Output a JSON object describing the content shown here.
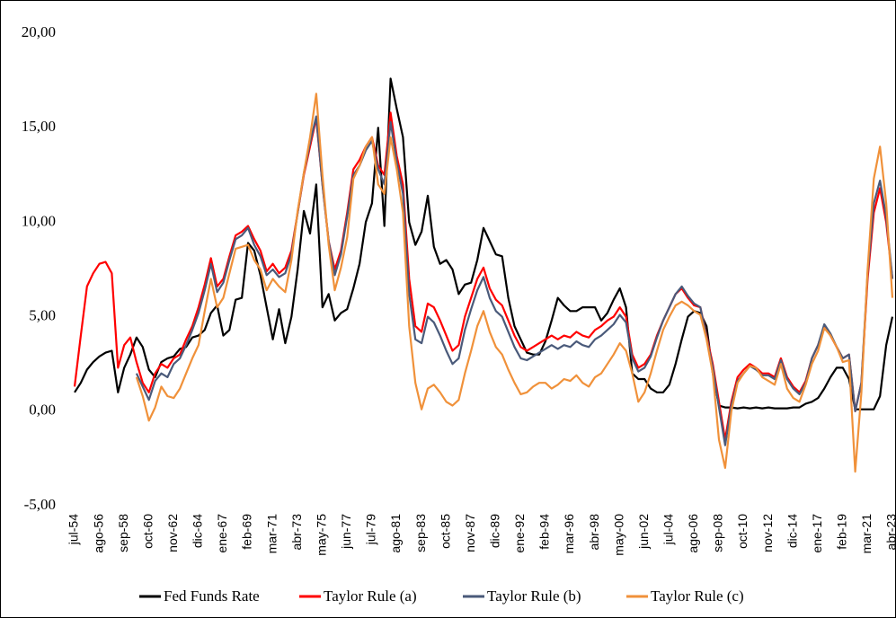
{
  "chart_data": {
    "type": "line",
    "categories": [
      "jul-54",
      null,
      null,
      null,
      "ago-56",
      null,
      null,
      null,
      "sep-58",
      null,
      null,
      null,
      "oct-60",
      null,
      null,
      null,
      "nov-62",
      null,
      null,
      null,
      "dic-64",
      null,
      null,
      null,
      "ene-67",
      null,
      null,
      null,
      "feb-69",
      null,
      null,
      null,
      "mar-71",
      null,
      null,
      null,
      "abr-73",
      null,
      null,
      null,
      "may-75",
      null,
      null,
      null,
      "jun-77",
      null,
      null,
      null,
      "jul-79",
      null,
      null,
      null,
      "ago-81",
      null,
      null,
      null,
      "sep-83",
      null,
      null,
      null,
      "oct-85",
      null,
      null,
      null,
      "nov-87",
      null,
      null,
      null,
      "dic-89",
      null,
      null,
      null,
      "ene-92",
      null,
      null,
      null,
      "feb-94",
      null,
      null,
      null,
      "mar-96",
      null,
      null,
      null,
      "abr-98",
      null,
      null,
      null,
      "may-00",
      null,
      null,
      null,
      "jun-02",
      null,
      null,
      null,
      "jul-04",
      null,
      null,
      null,
      "ago-06",
      null,
      null,
      null,
      "sep-08",
      null,
      null,
      null,
      "oct-10",
      null,
      null,
      null,
      "nov-12",
      null,
      null,
      null,
      "dic-14",
      null,
      null,
      null,
      "ene-17",
      null,
      null,
      null,
      "feb-19",
      null,
      null,
      null,
      "mar-21",
      null,
      null,
      null,
      "abr-23"
    ],
    "series": [
      {
        "name": "Fed Funds Rate",
        "color": "#000000",
        "values": [
          1.0,
          1.5,
          2.2,
          2.6,
          2.9,
          3.1,
          3.2,
          1.0,
          2.3,
          3.0,
          3.9,
          3.4,
          2.2,
          1.8,
          2.6,
          2.8,
          2.9,
          3.3,
          3.4,
          3.9,
          4.0,
          4.3,
          5.2,
          5.6,
          4.0,
          4.3,
          5.9,
          6.0,
          8.9,
          8.5,
          7.2,
          5.5,
          3.8,
          5.4,
          3.6,
          5.0,
          7.5,
          10.6,
          9.4,
          12.0,
          5.5,
          6.2,
          4.8,
          5.2,
          5.4,
          6.5,
          7.8,
          10.0,
          11.0,
          15.0,
          9.8,
          17.6,
          16.0,
          14.5,
          10.0,
          8.8,
          9.5,
          11.4,
          8.7,
          7.8,
          8.0,
          7.5,
          6.2,
          6.7,
          6.8,
          8.0,
          9.7,
          9.0,
          8.3,
          8.2,
          6.0,
          4.5,
          3.8,
          3.1,
          3.0,
          3.0,
          3.7,
          4.8,
          6.0,
          5.6,
          5.3,
          5.3,
          5.5,
          5.5,
          5.5,
          4.8,
          5.2,
          5.9,
          6.5,
          5.5,
          2.0,
          1.7,
          1.7,
          1.2,
          1.0,
          1.0,
          1.4,
          2.5,
          3.8,
          5.0,
          5.3,
          5.2,
          4.5,
          2.0,
          0.3,
          0.2,
          0.2,
          0.15,
          0.2,
          0.15,
          0.2,
          0.15,
          0.2,
          0.15,
          0.15,
          0.15,
          0.2,
          0.2,
          0.4,
          0.5,
          0.7,
          1.2,
          1.8,
          2.3,
          2.3,
          1.7,
          0.1,
          0.1,
          0.1,
          0.1,
          0.8,
          3.5,
          5.0
        ]
      },
      {
        "name": "Taylor Rule (a)",
        "color": "#ff0000",
        "values": [
          1.3,
          4.0,
          6.6,
          7.3,
          7.8,
          7.9,
          7.3,
          2.3,
          3.5,
          3.9,
          2.6,
          1.5,
          1.0,
          2.0,
          2.5,
          2.3,
          2.8,
          3.0,
          3.8,
          4.5,
          5.5,
          6.7,
          8.1,
          6.6,
          7.0,
          8.2,
          9.3,
          9.5,
          9.8,
          9.1,
          8.5,
          7.4,
          7.8,
          7.3,
          7.6,
          8.5,
          10.5,
          12.5,
          14.0,
          15.5,
          12.0,
          9.0,
          7.5,
          8.5,
          10.5,
          12.8,
          13.3,
          14.0,
          14.5,
          13.0,
          12.5,
          15.8,
          13.5,
          12.0,
          7.0,
          4.5,
          4.2,
          5.7,
          5.5,
          4.8,
          4.0,
          3.2,
          3.5,
          5.0,
          6.0,
          7.0,
          7.6,
          6.5,
          5.9,
          5.6,
          4.8,
          4.0,
          3.4,
          3.2,
          3.4,
          3.6,
          3.8,
          4.0,
          3.8,
          4.0,
          3.9,
          4.2,
          4.0,
          3.9,
          4.3,
          4.5,
          4.8,
          5.0,
          5.5,
          5.0,
          3.0,
          2.3,
          2.5,
          3.0,
          4.0,
          4.8,
          5.5,
          6.2,
          6.5,
          6.0,
          5.6,
          5.5,
          4.0,
          2.5,
          0.5,
          -1.5,
          0.5,
          1.8,
          2.2,
          2.5,
          2.3,
          2.0,
          2.0,
          1.8,
          2.8,
          1.8,
          1.3,
          1.0,
          1.6,
          2.8,
          3.5,
          4.5,
          4.0,
          3.4,
          2.8,
          3.0,
          0.0,
          1.5,
          7.0,
          10.5,
          11.8,
          10.0,
          7.0
        ]
      },
      {
        "name": "Taylor Rule (b)",
        "color": "#4a5a7a",
        "values": [
          null,
          null,
          null,
          null,
          null,
          null,
          null,
          null,
          null,
          null,
          2.0,
          1.3,
          0.6,
          1.6,
          2.0,
          1.8,
          2.5,
          2.8,
          3.5,
          4.3,
          5.2,
          6.4,
          7.8,
          6.3,
          6.8,
          8.0,
          9.1,
          9.3,
          9.7,
          8.8,
          8.2,
          7.2,
          7.5,
          7.1,
          7.3,
          8.3,
          10.5,
          12.6,
          14.2,
          15.6,
          12.0,
          9.0,
          7.2,
          8.3,
          10.3,
          12.5,
          13.0,
          13.8,
          14.3,
          12.8,
          12.0,
          15.3,
          13.2,
          11.5,
          6.2,
          3.8,
          3.6,
          5.0,
          4.7,
          4.0,
          3.2,
          2.5,
          2.8,
          4.3,
          5.4,
          6.4,
          7.1,
          6.0,
          5.3,
          5.0,
          4.2,
          3.4,
          2.8,
          2.7,
          2.9,
          3.1,
          3.3,
          3.5,
          3.3,
          3.5,
          3.4,
          3.7,
          3.5,
          3.4,
          3.8,
          4.0,
          4.3,
          4.6,
          5.1,
          4.7,
          2.8,
          2.1,
          2.3,
          2.9,
          3.9,
          4.8,
          5.5,
          6.2,
          6.6,
          6.1,
          5.7,
          5.5,
          3.9,
          2.3,
          0.2,
          -1.8,
          0.3,
          1.6,
          2.0,
          2.4,
          2.2,
          1.9,
          1.9,
          1.7,
          2.7,
          1.7,
          1.2,
          0.9,
          1.5,
          2.8,
          3.5,
          4.6,
          4.1,
          3.4,
          2.8,
          3.0,
          0.0,
          1.5,
          7.3,
          11.0,
          12.2,
          10.3,
          7.0
        ]
      },
      {
        "name": "Taylor Rule (c)",
        "color": "#f0913a",
        "values": [
          null,
          null,
          null,
          null,
          null,
          null,
          null,
          null,
          null,
          null,
          1.8,
          0.8,
          -0.5,
          0.2,
          1.3,
          0.8,
          0.7,
          1.2,
          2.0,
          2.8,
          3.5,
          5.3,
          7.0,
          5.5,
          6.0,
          7.3,
          8.6,
          8.7,
          8.8,
          8.0,
          7.5,
          6.4,
          7.0,
          6.6,
          6.3,
          8.0,
          10.6,
          12.6,
          14.5,
          16.8,
          12.5,
          8.8,
          6.4,
          7.6,
          9.2,
          12.3,
          13.0,
          14.0,
          14.5,
          12.0,
          11.5,
          14.5,
          12.8,
          10.5,
          4.5,
          1.5,
          0.1,
          1.2,
          1.4,
          1.0,
          0.5,
          0.3,
          0.6,
          2.0,
          3.2,
          4.5,
          5.3,
          4.2,
          3.4,
          3.0,
          2.2,
          1.5,
          0.9,
          1.0,
          1.3,
          1.5,
          1.5,
          1.2,
          1.4,
          1.7,
          1.6,
          1.9,
          1.5,
          1.3,
          1.8,
          2.0,
          2.5,
          3.0,
          3.6,
          3.2,
          2.0,
          0.5,
          1.0,
          2.0,
          3.2,
          4.3,
          5.0,
          5.6,
          5.8,
          5.6,
          5.3,
          5.1,
          3.8,
          2.0,
          -1.5,
          -3.0,
          0.0,
          1.5,
          2.0,
          2.4,
          2.3,
          1.8,
          1.6,
          1.4,
          2.5,
          1.2,
          0.7,
          0.5,
          1.4,
          2.5,
          3.2,
          4.4,
          4.0,
          3.4,
          2.6,
          2.7,
          -3.2,
          1.0,
          7.5,
          12.3,
          14.0,
          11.0,
          6.0
        ]
      }
    ],
    "ylim": [
      -5,
      20
    ],
    "yticks": [
      {
        "value": -5,
        "label": "-5,00"
      },
      {
        "value": 0,
        "label": "0,00"
      },
      {
        "value": 5,
        "label": "5,00"
      },
      {
        "value": 10,
        "label": "10,00"
      },
      {
        "value": 15,
        "label": "15,00"
      },
      {
        "value": 20,
        "label": "20,00"
      }
    ],
    "grid": false
  }
}
